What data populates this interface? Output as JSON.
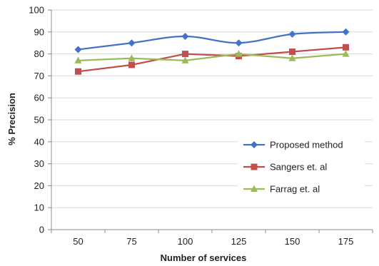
{
  "chart_data": {
    "type": "line",
    "title": "",
    "xlabel": "Number of services",
    "ylabel": "% Precision",
    "categories": [
      "50",
      "75",
      "100",
      "125",
      "150",
      "175"
    ],
    "ylim": [
      0,
      100
    ],
    "yticks": [
      "0",
      "10",
      "20",
      "30",
      "40",
      "50",
      "60",
      "70",
      "80",
      "90",
      "100"
    ],
    "grid": "horizontal",
    "legend_position": "bottom-right",
    "series": [
      {
        "name": "Proposed method",
        "values": [
          82,
          85,
          88,
          85,
          89,
          90
        ],
        "color": "#4472c4",
        "marker": "diamond",
        "smooth": true
      },
      {
        "name": "Sangers et. al",
        "values": [
          72,
          75,
          80,
          79,
          81,
          83
        ],
        "color": "#c0504d",
        "marker": "square",
        "smooth": false
      },
      {
        "name": "Farrag et. al",
        "values": [
          77,
          78,
          77,
          80,
          78,
          80
        ],
        "color": "#9bbb59",
        "marker": "triangle",
        "smooth": false
      }
    ]
  }
}
